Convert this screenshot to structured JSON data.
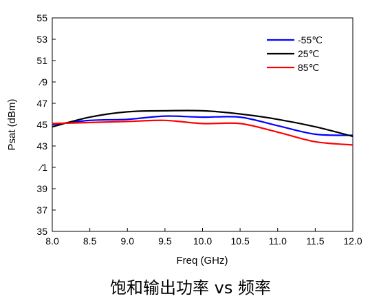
{
  "chart_data": {
    "type": "line",
    "title": "",
    "xlabel": "Freq (GHz)",
    "ylabel": "Psat (dBm)",
    "xlim": [
      8.0,
      12.0
    ],
    "ylim": [
      35,
      55
    ],
    "xticks": [
      "8.0",
      "8.5",
      "9.0",
      "9.5",
      "10.0",
      "10.5",
      "11.0",
      "11.5",
      "12.0"
    ],
    "yticks": [
      "35",
      "37",
      "39",
      "41",
      "43",
      "45",
      "47",
      "49",
      "51",
      "53",
      "55"
    ],
    "ytick_labels": [
      "35",
      "37",
      "39",
      "⁄1",
      "43",
      "45",
      "47",
      "⁄9",
      "51",
      "53",
      "55"
    ],
    "grid": false,
    "legend_position": "top-right",
    "series": [
      {
        "name": "-55℃",
        "color": "#0000ff",
        "x": [
          8.0,
          8.5,
          9.0,
          9.5,
          10.0,
          10.5,
          11.0,
          11.5,
          12.0
        ],
        "y": [
          45.0,
          45.4,
          45.5,
          45.8,
          45.7,
          45.7,
          44.9,
          44.1,
          44.0
        ]
      },
      {
        "name": "25℃",
        "color": "#000000",
        "x": [
          8.0,
          8.5,
          9.0,
          9.5,
          10.0,
          10.5,
          11.0,
          11.5,
          12.0
        ],
        "y": [
          44.8,
          45.7,
          46.2,
          46.3,
          46.3,
          46.0,
          45.5,
          44.8,
          43.9
        ]
      },
      {
        "name": "85℃",
        "color": "#ff0000",
        "x": [
          8.0,
          8.5,
          9.0,
          9.5,
          10.0,
          10.5,
          11.0,
          11.5,
          12.0
        ],
        "y": [
          45.1,
          45.2,
          45.3,
          45.4,
          45.1,
          45.1,
          44.3,
          43.4,
          43.1
        ]
      }
    ]
  },
  "caption": "饱和输出功率 vs 频率"
}
